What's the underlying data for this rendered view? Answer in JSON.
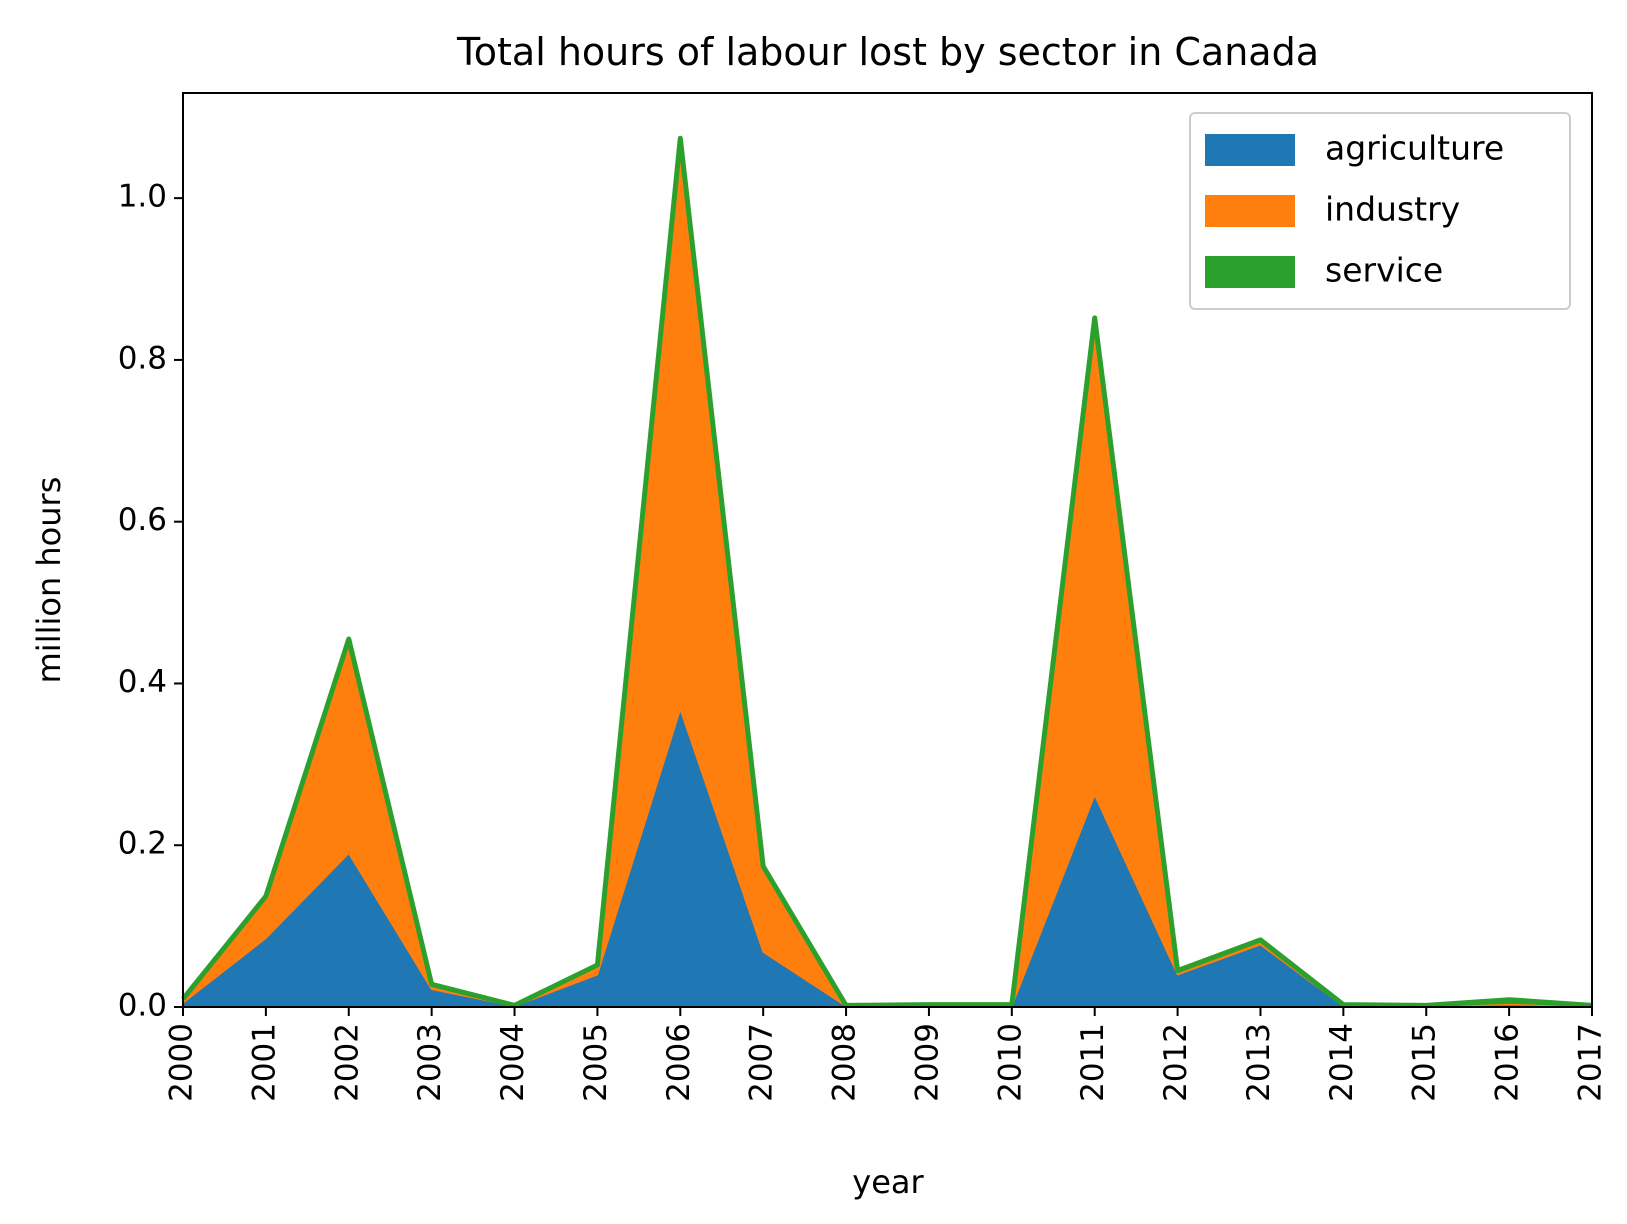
{
  "chart_data": {
    "type": "area",
    "stacked": true,
    "title": "Total hours of labour lost by sector in Canada",
    "xlabel": "year",
    "ylabel": "million hours",
    "x": [
      "2000",
      "2001",
      "2002",
      "2003",
      "2004",
      "2005",
      "2006",
      "2007",
      "2008",
      "2009",
      "2010",
      "2011",
      "2012",
      "2013",
      "2014",
      "2015",
      "2016",
      "2017"
    ],
    "yticks": [
      "0.0",
      "0.2",
      "0.4",
      "0.6",
      "0.8",
      "1.0"
    ],
    "ylim": [
      0,
      1.13
    ],
    "grid": false,
    "legend_position": "top-right",
    "series": [
      {
        "name": "agriculture",
        "color": "#1f77b4",
        "values": [
          0.005,
          0.085,
          0.19,
          0.022,
          0.001,
          0.04,
          0.368,
          0.068,
          0.001,
          0.001,
          0.001,
          0.262,
          0.04,
          0.077,
          0.001,
          0.001,
          0.003,
          0.001
        ]
      },
      {
        "name": "industry",
        "color": "#ff7f0e",
        "values": [
          0.004,
          0.05,
          0.26,
          0.004,
          0.0,
          0.01,
          0.7,
          0.103,
          0.0,
          0.0,
          0.0,
          0.585,
          0.003,
          0.004,
          0.001,
          0.0,
          0.002,
          0.0
        ]
      },
      {
        "name": "service",
        "color": "#2ca02c",
        "values": [
          0.001,
          0.002,
          0.005,
          0.002,
          0.001,
          0.002,
          0.006,
          0.003,
          0.001,
          0.002,
          0.002,
          0.005,
          0.002,
          0.002,
          0.001,
          0.001,
          0.004,
          0.001
        ]
      }
    ]
  }
}
